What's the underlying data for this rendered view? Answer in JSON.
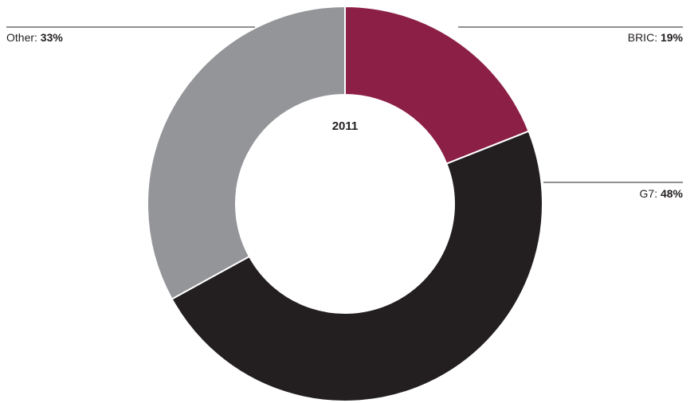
{
  "chart_data": {
    "type": "pie",
    "donut": true,
    "center_label": "2011",
    "unit": "%",
    "slices": [
      {
        "name": "BRIC",
        "value": 19,
        "display": "19%",
        "color": "#8b1f45"
      },
      {
        "name": "G7",
        "value": 48,
        "display": "48%",
        "color": "#231f20"
      },
      {
        "name": "Other",
        "value": 33,
        "display": "33%",
        "color": "#939598"
      }
    ],
    "legend": "callout-labels"
  }
}
